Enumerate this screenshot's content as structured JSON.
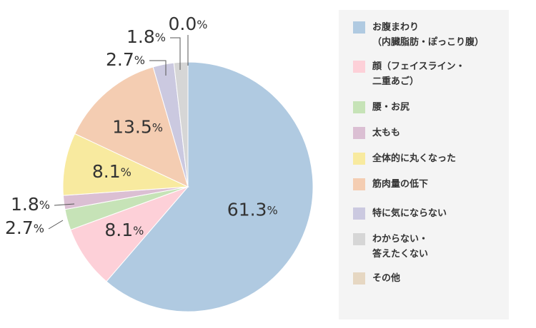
{
  "chart_data": {
    "type": "pie",
    "unit": "%",
    "start_angle_deg": 0,
    "direction": "clockwise",
    "categories": [
      "お腹まわり\n（内臓脂肪・ぽっこり腹）",
      "顔（フェイスライン・\n二重あご）",
      "腰・お尻",
      "太もも",
      "全体的に丸くなった",
      "筋肉量の低下",
      "特に気にならない",
      "わからない・\n答えたくない",
      "その他"
    ],
    "values": [
      61.3,
      8.1,
      2.7,
      1.8,
      8.1,
      13.5,
      2.7,
      1.8,
      0.0
    ],
    "value_labels": [
      "61.3",
      "8.1",
      "2.7",
      "1.8",
      "8.1",
      "13.5",
      "2.7",
      "1.8",
      "0.0"
    ],
    "colors": [
      "#b0cae1",
      "#fdd0d8",
      "#c6e3b7",
      "#dbbfd3",
      "#f8ea9f",
      "#f4cdb2",
      "#cbc9e0",
      "#d6d6d6",
      "#e6d7c2"
    ],
    "legend_position": "right"
  }
}
